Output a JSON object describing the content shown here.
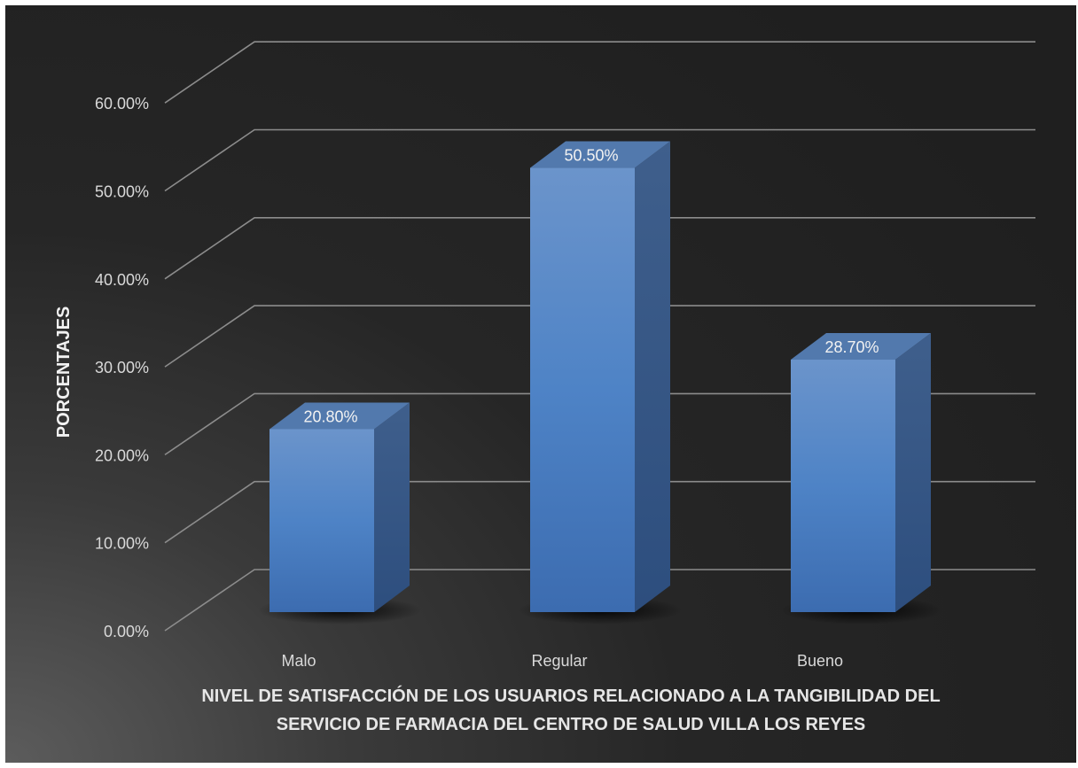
{
  "chart_data": {
    "type": "bar",
    "categories": [
      "Malo",
      "Regular",
      "Bueno"
    ],
    "series": [
      {
        "values": [
          20.8,
          50.5,
          28.7
        ]
      }
    ],
    "data_labels": [
      "20.80%",
      "50.50%",
      "28.70%"
    ],
    "y_ticks": [
      "0.00%",
      "10.00%",
      "20.00%",
      "30.00%",
      "40.00%",
      "50.00%",
      "60.00%"
    ],
    "ylim": [
      0,
      60
    ],
    "ylabel": "PORCENTAJES",
    "xlabel_lines": [
      "NIVEL DE SATISFACCIÓN DE LOS USUARIOS RELACIONADO A LA TANGIBILIDAD DEL",
      "SERVICIO DE FARMACIA DEL CENTRO DE SALUD VILLA LOS REYES"
    ],
    "grid": true,
    "style": "3d-column",
    "colors": {
      "bar": "#4a7fc1",
      "gridline": "#8c8c8c",
      "background": "#262626"
    }
  }
}
